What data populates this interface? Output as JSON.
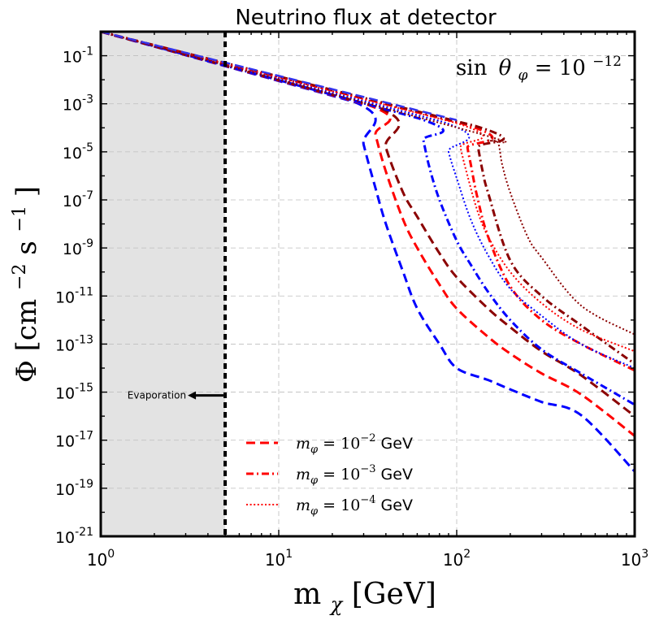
{
  "chart_data": {
    "type": "line",
    "title": "Neutrino flux at detector",
    "annotation": "sin θ_φ = 10^-12",
    "annotation_parts": {
      "func": "sin",
      "sym": "θ",
      "sub": "φ",
      "eq": " = 10",
      "exp": "−12"
    },
    "xlabel": "m_χ [GeV]",
    "xlabel_parts": {
      "m": "m",
      "sub": "χ",
      "unit": " [GeV]"
    },
    "ylabel": "Φ [cm^-2 s^-1]",
    "ylabel_parts": {
      "phi": "Φ [cm",
      "exp1": "−2",
      "mid": " s",
      "exp2": "−1",
      "end": "]"
    },
    "xscale": "log",
    "yscale": "log",
    "xlim": [
      1,
      1000
    ],
    "ylim": [
      1e-21,
      1
    ],
    "grid": true,
    "x_ticks": [
      {
        "value": 1,
        "base": "10",
        "exp": "0"
      },
      {
        "value": 10,
        "base": "10",
        "exp": "1"
      },
      {
        "value": 100,
        "base": "10",
        "exp": "2"
      },
      {
        "value": 1000,
        "base": "10",
        "exp": "3"
      }
    ],
    "y_ticks": [
      {
        "value": 0.1,
        "base": "10",
        "exp": "-1"
      },
      {
        "value": 0.001,
        "base": "10",
        "exp": "-3"
      },
      {
        "value": 1e-05,
        "base": "10",
        "exp": "-5"
      },
      {
        "value": 1e-07,
        "base": "10",
        "exp": "-7"
      },
      {
        "value": 1e-09,
        "base": "10",
        "exp": "-9"
      },
      {
        "value": 1e-11,
        "base": "10",
        "exp": "-11"
      },
      {
        "value": 1e-13,
        "base": "10",
        "exp": "-13"
      },
      {
        "value": 1e-15,
        "base": "10",
        "exp": "-15"
      },
      {
        "value": 1e-17,
        "base": "10",
        "exp": "-17"
      },
      {
        "value": 1e-19,
        "base": "10",
        "exp": "-19"
      },
      {
        "value": 1e-21,
        "base": "10",
        "exp": "-21"
      }
    ],
    "evaporation": {
      "label": "Evaporation",
      "mass_limit": 5,
      "arrow_y": 1e-15
    },
    "legend": {
      "position": "lower-center",
      "entries": [
        {
          "label": "m_φ = 10^-2 GeV",
          "m": "m",
          "sub": "φ",
          "eq": " = 10",
          "exp": "−2",
          "unit": " GeV",
          "style": "dashed"
        },
        {
          "label": "m_φ = 10^-3 GeV",
          "m": "m",
          "sub": "φ",
          "eq": " = 10",
          "exp": "−3",
          "unit": " GeV",
          "style": "dashdot"
        },
        {
          "label": "m_φ = 10^-4 GeV",
          "m": "m",
          "sub": "φ",
          "eq": " = 10",
          "exp": "−4",
          "unit": " GeV",
          "style": "dotted"
        }
      ]
    },
    "common_line": {
      "x": [
        1,
        10,
        100
      ],
      "y": [
        1.0,
        0.0145,
        0.00021
      ]
    },
    "series": [
      {
        "name": "m_φ=1e-2 blue",
        "color": "#0000ff",
        "style": "dashed",
        "x": [
          1,
          26.6,
          30,
          35,
          40,
          50,
          60,
          80,
          100,
          150,
          200,
          300,
          500,
          1000
        ],
        "y": [
          1.0,
          0.0012,
          2e-05,
          3e-07,
          1e-08,
          1e-10,
          3e-12,
          1e-13,
          1e-14,
          3.2e-15,
          1.3e-15,
          3.9e-16,
          1.1e-16,
          5e-19
        ]
      },
      {
        "name": "m_φ=1e-2 red",
        "color": "#ff0000",
        "style": "dashed",
        "x": [
          1,
          32,
          35,
          40,
          50,
          60,
          80,
          100,
          150,
          200,
          300,
          500,
          1000
        ],
        "y": [
          1.0,
          0.00088,
          5e-05,
          1.5e-06,
          1.5e-08,
          1e-09,
          3e-11,
          3e-12,
          2e-13,
          4e-14,
          6e-15,
          8e-16,
          1.5e-17
        ]
      },
      {
        "name": "m_φ=1e-2 dark red",
        "color": "#8b0000",
        "style": "dashed",
        "x": [
          1,
          35.5,
          40,
          50,
          60,
          80,
          100,
          150,
          200,
          300,
          500,
          1000
        ],
        "y": [
          1.0,
          0.00075,
          1.5e-05,
          2e-07,
          2e-08,
          6e-10,
          6e-11,
          3e-12,
          5e-13,
          5e-14,
          5e-15,
          1e-16
        ]
      },
      {
        "name": "m_φ=1e-3 blue",
        "color": "#0000ff",
        "style": "dashdot",
        "x": [
          1,
          61,
          65,
          70,
          80,
          100,
          120,
          150,
          200,
          300,
          500,
          1000
        ],
        "y": [
          1.0,
          0.00025,
          3e-05,
          2.5e-06,
          1e-07,
          2e-09,
          2e-10,
          1.5e-11,
          1e-12,
          6e-14,
          6e-15,
          3e-16
        ]
      },
      {
        "name": "m_φ=1e-3 red",
        "color": "#ff0000",
        "style": "dashdot",
        "x": [
          1,
          111,
          115,
          120,
          130,
          150,
          200,
          300,
          500,
          1000
        ],
        "y": [
          1.0,
          0.00014,
          1.5e-05,
          3e-06,
          1.5e-07,
          3e-09,
          2.5e-11,
          1e-12,
          1e-13,
          8e-15
        ]
      },
      {
        "name": "m_φ=1e-3 dark red",
        "color": "#8b0000",
        "style": "dashdot",
        "x": [
          1,
          127,
          132,
          140,
          150,
          200,
          300,
          500,
          1000
        ],
        "y": [
          1.0,
          0.00012,
          1.5e-05,
          1.5e-06,
          2e-07,
          3e-10,
          1e-11,
          6e-13,
          1.5e-14
        ]
      },
      {
        "name": "m_φ=1e-4 blue",
        "color": "#0000ff",
        "style": "dotted",
        "x": [
          1,
          83,
          90,
          100,
          120,
          150,
          200,
          300,
          500,
          1000
        ],
        "y": [
          1.0,
          0.00018,
          1e-05,
          8e-07,
          1.5e-08,
          5e-10,
          2e-11,
          1.5e-12,
          1e-13,
          1e-14
        ]
      },
      {
        "name": "m_φ=1e-4 red",
        "color": "#ff0000",
        "style": "dotted",
        "x": [
          1,
          99,
          105,
          115,
          130,
          150,
          200,
          300,
          500,
          1000
        ],
        "y": [
          1.0,
          0.00016,
          1.5e-05,
          1e-06,
          4e-08,
          3e-09,
          1e-10,
          5e-12,
          4e-13,
          5e-14
        ]
      },
      {
        "name": "m_φ=1e-4 dark red",
        "color": "#8b0000",
        "style": "dotted",
        "x": [
          1,
          126,
          150,
          170,
          180,
          200,
          250,
          300,
          500,
          1000
        ],
        "y": [
          1.0,
          6.5e-05,
          3e-05,
          2.5e-05,
          3e-06,
          2e-07,
          3e-09,
          4e-10,
          4e-12,
          2.5e-13
        ]
      }
    ]
  }
}
